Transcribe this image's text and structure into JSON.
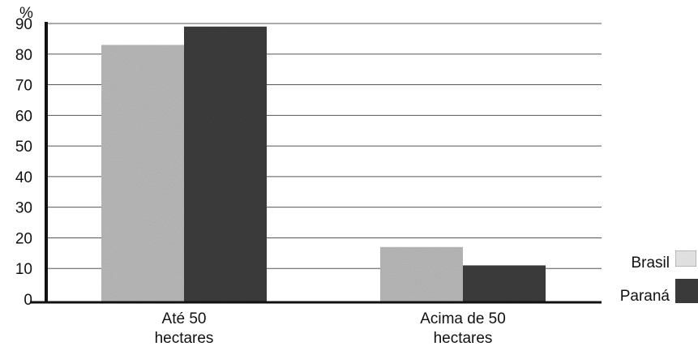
{
  "chart_data": {
    "type": "bar",
    "title": "",
    "xlabel": "",
    "ylabel": "%",
    "ylim": [
      0,
      90
    ],
    "yticks": [
      0,
      10,
      20,
      30,
      40,
      50,
      60,
      70,
      80,
      90
    ],
    "grid": true,
    "legend_position": "right",
    "categories": [
      "Até 50\nhectares",
      "Acima de 50\nhectares"
    ],
    "series": [
      {
        "name": "Brasil",
        "values": [
          83,
          17
        ],
        "color": "#b9b9b9"
      },
      {
        "name": "Paraná",
        "values": [
          89,
          11
        ],
        "color": "#3c3c3c"
      }
    ]
  }
}
